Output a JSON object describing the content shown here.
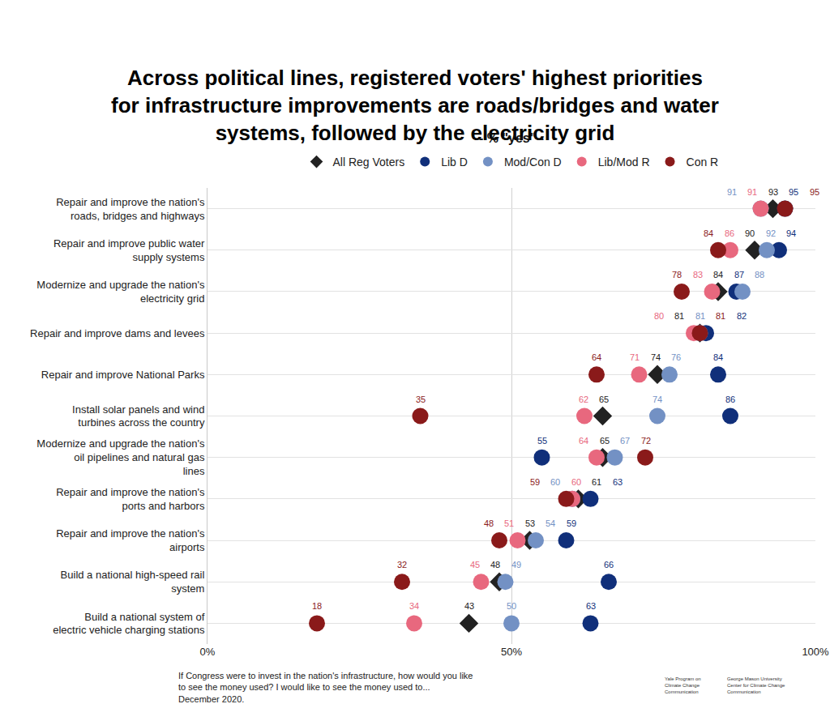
{
  "chart_data": {
    "type": "dot",
    "title": "Across political lines, registered voters' highest priorities for infrastructure improvements are roads/bridges and water systems, followed by the electricity grid",
    "subtitle": "- % \"yes\" -",
    "orientation": "horizontal",
    "categories": [
      "Repair and improve the nation's roads, bridges and highways",
      "Repair and improve public water supply systems",
      "Modernize and upgrade the nation's electricity grid",
      "Repair and improve dams and levees",
      "Repair and improve National Parks",
      "Install solar panels and wind turbines across the country",
      "Modernize and upgrade the nation's oil pipelines and natural gas lines",
      "Repair and improve the nation's ports and harbors",
      "Repair and improve the nation's airports",
      "Build a national high-speed rail system",
      "Build a national system of electric vehicle charging stations"
    ],
    "series": [
      {
        "name": "All Reg Voters",
        "color": "#222222",
        "marker": "diamond",
        "values": [
          93,
          90,
          84,
          81,
          74,
          65,
          65,
          61,
          53,
          48,
          43
        ]
      },
      {
        "name": "Lib D",
        "color": "#102f7a",
        "marker": "circle",
        "values": [
          95,
          94,
          87,
          82,
          84,
          86,
          55,
          63,
          59,
          66,
          63
        ]
      },
      {
        "name": "Mod/Con D",
        "color": "#7391c4",
        "marker": "circle",
        "values": [
          91,
          92,
          88,
          81,
          76,
          74,
          67,
          60,
          54,
          49,
          50
        ]
      },
      {
        "name": "Lib/Mod R",
        "color": "#e8687e",
        "marker": "circle",
        "values": [
          91,
          86,
          83,
          80,
          71,
          62,
          64,
          60,
          51,
          45,
          34
        ]
      },
      {
        "name": "Con R",
        "color": "#8a1a1a",
        "marker": "circle",
        "values": [
          95,
          84,
          78,
          81,
          64,
          35,
          72,
          59,
          48,
          32,
          18
        ]
      }
    ],
    "xlim": [
      0,
      100
    ],
    "xticks": [
      {
        "value": 0,
        "label": "0%"
      },
      {
        "value": 50,
        "label": "50%"
      },
      {
        "value": 100,
        "label": "100%"
      }
    ],
    "grid": true,
    "legend": "top",
    "data_labels": true,
    "notes": [
      "If Congress were to invest in the nation's infrastructure, how would you like to see the money used? I would like to see the money used to...",
      "December 2020."
    ],
    "logos": [
      "Yale Program on Climate Change Communication",
      "George Mason University Center for Climate Change Communication"
    ]
  }
}
